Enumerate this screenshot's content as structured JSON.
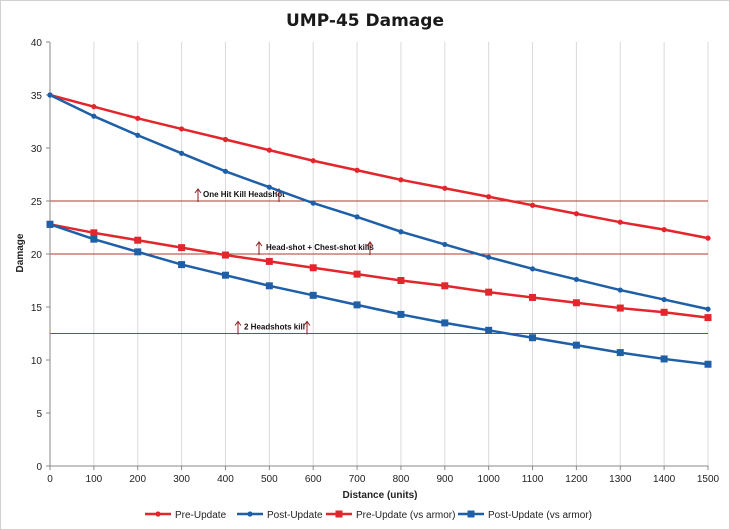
{
  "chart_data": {
    "type": "line",
    "title": "UMP-45 Damage",
    "xlabel": "Distance  (units)",
    "ylabel": "Damage",
    "xlim": [
      0,
      1500
    ],
    "ylim": [
      0,
      40
    ],
    "xticks": [
      "0",
      "100",
      "200",
      "300",
      "400",
      "500",
      "600",
      "700",
      "800",
      "900",
      "1000",
      "1100",
      "1200",
      "1300",
      "1400",
      "1500"
    ],
    "yticks": [
      "0",
      "5",
      "10",
      "15",
      "20",
      "25",
      "30",
      "35",
      "40"
    ],
    "grid": "vertical",
    "legend_position": "bottom",
    "x": [
      0,
      100,
      200,
      300,
      400,
      500,
      600,
      700,
      800,
      900,
      1000,
      1100,
      1200,
      1300,
      1400,
      1500
    ],
    "series": [
      {
        "name": "Pre-Update",
        "color": "#e2262b",
        "marker": "circle",
        "values": [
          35.0,
          33.9,
          32.8,
          31.8,
          30.8,
          29.8,
          28.8,
          27.9,
          27.0,
          26.2,
          25.4,
          24.6,
          23.8,
          23.0,
          22.3,
          21.5
        ]
      },
      {
        "name": "Post-Update",
        "color": "#1f5fa8",
        "marker": "circle",
        "values": [
          35.0,
          33.0,
          31.2,
          29.5,
          27.8,
          26.3,
          24.8,
          23.5,
          22.1,
          20.9,
          19.7,
          18.6,
          17.6,
          16.6,
          15.7,
          14.8
        ]
      },
      {
        "name": "Pre-Update (vs armor)",
        "color": "#e2262b",
        "marker": "square",
        "values": [
          22.8,
          22.0,
          21.3,
          20.6,
          19.9,
          19.3,
          18.7,
          18.1,
          17.5,
          17.0,
          16.4,
          15.9,
          15.4,
          14.9,
          14.5,
          14.0
        ]
      },
      {
        "name": "Post-Update (vs armor)",
        "color": "#1f5fa8",
        "marker": "square",
        "values": [
          22.8,
          21.4,
          20.2,
          19.0,
          18.0,
          17.0,
          16.1,
          15.2,
          14.3,
          13.5,
          12.8,
          12.1,
          11.4,
          10.7,
          10.1,
          9.6
        ]
      }
    ],
    "reference_lines": [
      {
        "y": 25,
        "label": "One Hit Kill Headshot",
        "color": "#b03a2e"
      },
      {
        "y": 20,
        "label": "Head-shot + Chest-shot kills",
        "color": "#b03a2e"
      },
      {
        "y": 12.5,
        "label": "2 Headshots kill",
        "color": "#b03a2e"
      }
    ]
  }
}
